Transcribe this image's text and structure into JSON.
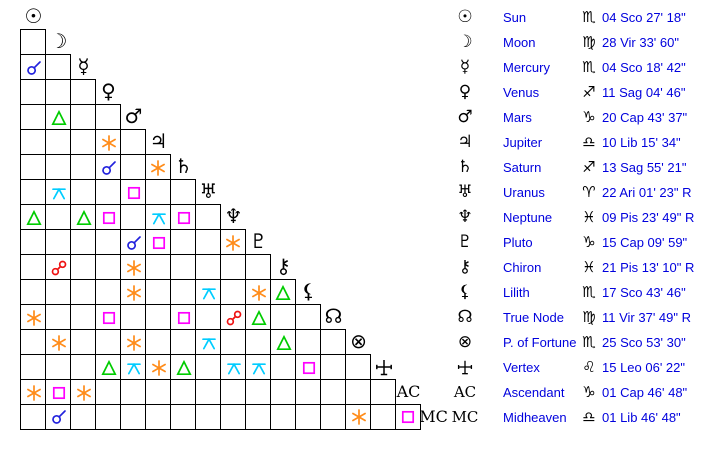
{
  "colors": {
    "background": "#ffffff",
    "grid_line": "#000000",
    "glyph": "#000000",
    "table_text": "#0000dd"
  },
  "aspect_types": {
    "conjunction": {
      "label": "Conjunction",
      "color": "#2222dd"
    },
    "sextile": {
      "label": "Sextile",
      "color": "#ff8c1a"
    },
    "square": {
      "label": "Square",
      "color": "#ff00ff"
    },
    "trine": {
      "label": "Trine",
      "color": "#00cc00"
    },
    "opposition": {
      "label": "Opposition",
      "color": "#ee1111"
    },
    "quincunx": {
      "label": "Quincunx",
      "color": "#00ccff"
    }
  },
  "points": [
    {
      "id": "sun",
      "name": "Sun",
      "glyph": "☉",
      "glyph_type": "unicode",
      "sign_glyph": "♏",
      "position": "04 Sco 27' 18\""
    },
    {
      "id": "moon",
      "name": "Moon",
      "glyph": "☽",
      "glyph_type": "unicode",
      "sign_glyph": "♍",
      "position": "28 Vir 33' 60\""
    },
    {
      "id": "mercury",
      "name": "Mercury",
      "glyph": "☿",
      "glyph_type": "unicode",
      "sign_glyph": "♏",
      "position": "04 Sco 18' 42\""
    },
    {
      "id": "venus",
      "name": "Venus",
      "glyph": "♀",
      "glyph_type": "unicode",
      "sign_glyph": "♐",
      "position": "11 Sag 04' 46\""
    },
    {
      "id": "mars",
      "name": "Mars",
      "glyph": "♂",
      "glyph_type": "unicode",
      "sign_glyph": "♑",
      "position": "20 Cap 43' 37\""
    },
    {
      "id": "jupiter",
      "name": "Jupiter",
      "glyph": "♃",
      "glyph_type": "unicode",
      "sign_glyph": "♎",
      "position": "10 Lib 15' 34\""
    },
    {
      "id": "saturn",
      "name": "Saturn",
      "glyph": "♄",
      "glyph_type": "unicode",
      "sign_glyph": "♐",
      "position": "13 Sag 55' 21\""
    },
    {
      "id": "uranus",
      "name": "Uranus",
      "glyph": "♅",
      "glyph_type": "unicode",
      "sign_glyph": "♈",
      "position": "22 Ari 01' 23\" R"
    },
    {
      "id": "neptune",
      "name": "Neptune",
      "glyph": "♆",
      "glyph_type": "unicode",
      "sign_glyph": "♓",
      "position": "09 Pis 23' 49\" R"
    },
    {
      "id": "pluto",
      "name": "Pluto",
      "glyph": "♇",
      "glyph_type": "unicode",
      "sign_glyph": "♑",
      "position": "15 Cap 09' 59\""
    },
    {
      "id": "chiron",
      "name": "Chiron",
      "glyph": "⚷",
      "glyph_type": "unicode",
      "sign_glyph": "♓",
      "position": "21 Pis 13' 10\" R"
    },
    {
      "id": "lilith",
      "name": "Lilith",
      "glyph": "⚸",
      "glyph_type": "unicode",
      "sign_glyph": "♏",
      "position": "17 Sco 43' 46\""
    },
    {
      "id": "true-node",
      "name": "True Node",
      "glyph": "☊",
      "glyph_type": "unicode",
      "sign_glyph": "♍",
      "position": "11 Vir 37' 49\" R"
    },
    {
      "id": "fortune",
      "name": "P. of Fortune",
      "glyph": "⊗",
      "glyph_type": "unicode",
      "sign_glyph": "♏",
      "position": "25 Sco 53' 30\""
    },
    {
      "id": "vertex",
      "name": "Vertex",
      "glyph": "",
      "glyph_type": "svg-vertex",
      "sign_glyph": "♌",
      "position": "15 Leo 06' 22\""
    },
    {
      "id": "ascendant",
      "name": "Ascendant",
      "glyph": "AC",
      "glyph_type": "text",
      "sign_glyph": "♑",
      "position": "01 Cap 46' 48\""
    },
    {
      "id": "midheaven",
      "name": "Midheaven",
      "glyph": "MC",
      "glyph_type": "text",
      "sign_glyph": "♎",
      "position": "01 Lib 46' 48\""
    }
  ],
  "aspects": [
    {
      "row": 2,
      "col": 0,
      "type": "conjunction"
    },
    {
      "row": 4,
      "col": 1,
      "type": "trine"
    },
    {
      "row": 5,
      "col": 3,
      "type": "sextile"
    },
    {
      "row": 6,
      "col": 3,
      "type": "conjunction"
    },
    {
      "row": 6,
      "col": 5,
      "type": "sextile"
    },
    {
      "row": 7,
      "col": 1,
      "type": "quincunx"
    },
    {
      "row": 7,
      "col": 4,
      "type": "square"
    },
    {
      "row": 8,
      "col": 0,
      "type": "trine"
    },
    {
      "row": 8,
      "col": 2,
      "type": "trine"
    },
    {
      "row": 8,
      "col": 3,
      "type": "square"
    },
    {
      "row": 8,
      "col": 5,
      "type": "quincunx"
    },
    {
      "row": 8,
      "col": 6,
      "type": "square"
    },
    {
      "row": 9,
      "col": 4,
      "type": "conjunction"
    },
    {
      "row": 9,
      "col": 5,
      "type": "square"
    },
    {
      "row": 9,
      "col": 8,
      "type": "sextile"
    },
    {
      "row": 10,
      "col": 1,
      "type": "opposition"
    },
    {
      "row": 10,
      "col": 4,
      "type": "sextile"
    },
    {
      "row": 11,
      "col": 4,
      "type": "sextile"
    },
    {
      "row": 11,
      "col": 7,
      "type": "quincunx"
    },
    {
      "row": 11,
      "col": 9,
      "type": "sextile"
    },
    {
      "row": 11,
      "col": 10,
      "type": "trine"
    },
    {
      "row": 12,
      "col": 0,
      "type": "sextile"
    },
    {
      "row": 12,
      "col": 3,
      "type": "square"
    },
    {
      "row": 12,
      "col": 6,
      "type": "square"
    },
    {
      "row": 12,
      "col": 8,
      "type": "opposition"
    },
    {
      "row": 12,
      "col": 9,
      "type": "trine"
    },
    {
      "row": 13,
      "col": 1,
      "type": "sextile"
    },
    {
      "row": 13,
      "col": 4,
      "type": "sextile"
    },
    {
      "row": 13,
      "col": 7,
      "type": "quincunx"
    },
    {
      "row": 13,
      "col": 10,
      "type": "trine"
    },
    {
      "row": 14,
      "col": 3,
      "type": "trine"
    },
    {
      "row": 14,
      "col": 4,
      "type": "quincunx"
    },
    {
      "row": 14,
      "col": 5,
      "type": "sextile"
    },
    {
      "row": 14,
      "col": 6,
      "type": "trine"
    },
    {
      "row": 14,
      "col": 8,
      "type": "quincunx"
    },
    {
      "row": 14,
      "col": 9,
      "type": "quincunx"
    },
    {
      "row": 14,
      "col": 11,
      "type": "square"
    },
    {
      "row": 15,
      "col": 0,
      "type": "sextile"
    },
    {
      "row": 15,
      "col": 1,
      "type": "square"
    },
    {
      "row": 15,
      "col": 2,
      "type": "sextile"
    },
    {
      "row": 16,
      "col": 1,
      "type": "conjunction"
    },
    {
      "row": 16,
      "col": 13,
      "type": "sextile"
    },
    {
      "row": 16,
      "col": 15,
      "type": "square"
    }
  ]
}
